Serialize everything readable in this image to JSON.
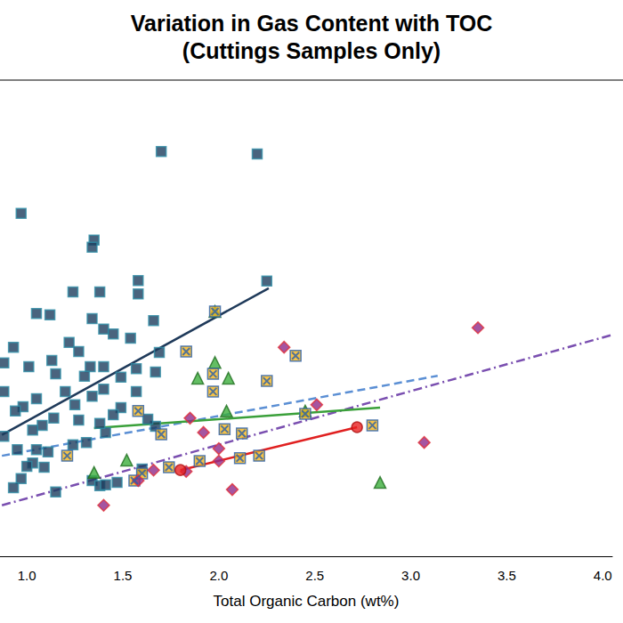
{
  "chart_data": {
    "type": "scatter",
    "title": "Variation in Gas Content with TOC",
    "subtitle": "(Cuttings Samples Only)",
    "x_label": "Total Organic Carbon (wt%)",
    "xlim": [
      0.86,
      4.05
    ],
    "xticks": [
      {
        "value": 1,
        "label": "1.0"
      },
      1.5,
      {
        "value": 2,
        "label": "2.0"
      },
      2.5,
      {
        "value": 3,
        "label": "3.0"
      },
      3.5,
      {
        "value": 4,
        "label": "4.0"
      }
    ],
    "ylim": [
      0,
      100
    ],
    "tick_labels": "x",
    "grid": false,
    "series": [
      {
        "type": "line",
        "color": "#1f3a5a",
        "line_style": "solid",
        "x": [
          0.87,
          2.26
        ],
        "values": [
          25.5,
          56.3
        ]
      },
      {
        "type": "line",
        "color": "#5b8fd4",
        "line_style": "dashed",
        "x": [
          0.87,
          3.14
        ],
        "values": [
          21.1,
          37.9
        ]
      },
      {
        "type": "line",
        "color": "#7a4fb0",
        "line_style": "dashdot",
        "x": [
          0.87,
          4.05
        ],
        "values": [
          10.7,
          46.5
        ]
      },
      {
        "type": "line",
        "color": "#3aa03a",
        "line_style": "solid",
        "x": [
          1.35,
          2.84
        ],
        "values": [
          26.9,
          31.2
        ]
      },
      {
        "type": "line",
        "color": "#e02020",
        "line_style": "solid",
        "x": [
          1.8,
          2.72
        ],
        "values": [
          18.1,
          27.1
        ]
      },
      {
        "type": "scatter",
        "color": "#1d3d5e",
        "marker": "square",
        "x": [
          1.7,
          2.2,
          0.97,
          1.35,
          1.34,
          2.25,
          1.58,
          1.24,
          1.38,
          1.05,
          1.12,
          1.58,
          1.34,
          1.66,
          1.4,
          0.93,
          1.22,
          1.45,
          1.27,
          1.54,
          1.13,
          1.01,
          1.4,
          1.33,
          0.88,
          1.69,
          1.15,
          1.57,
          1.67,
          0.88,
          1.3,
          1.49,
          1.05,
          1.4,
          1.2,
          1.34,
          1.57,
          0.98,
          0.94,
          1.49,
          1.14,
          1.27,
          1.45,
          1.08,
          1.03,
          1.41,
          0.88,
          1.67,
          1.38,
          1.31,
          0.95,
          1.11,
          1.03,
          1.09,
          1.0,
          0.97,
          0.93,
          1.15,
          1.34,
          1.38,
          1.41,
          1.47,
          1.6,
          1.05,
          1.24,
          1.63,
          1.25
        ],
        "values": [
          85.0,
          84.5,
          72.0,
          66.4,
          64.9,
          57.8,
          57.9,
          55.5,
          55.5,
          51.0,
          50.7,
          55.1,
          49.9,
          49.5,
          47.7,
          43.9,
          44.9,
          46.7,
          43.0,
          45.8,
          41.1,
          39.8,
          39.8,
          39.8,
          40.6,
          42.8,
          38.3,
          39.4,
          38.7,
          34.6,
          37.8,
          37.6,
          33.1,
          35.1,
          34.6,
          33.6,
          34.6,
          31.4,
          30.5,
          31.2,
          29.0,
          28.6,
          29.7,
          27.5,
          26.5,
          26.0,
          25.2,
          27.3,
          27.9,
          23.9,
          22.4,
          21.9,
          19.6,
          18.7,
          18.9,
          16.3,
          14.4,
          13.5,
          15.9,
          14.8,
          15.0,
          15.5,
          18.3,
          22.4,
          23.4,
          28.8,
          31.8
        ]
      },
      {
        "type": "scatter",
        "color": "#3cae3c",
        "marker": "triangle",
        "x": [
          1.98,
          1.98,
          1.89,
          2.05,
          2.04,
          2.45,
          1.52,
          1.35,
          2.84
        ],
        "values": [
          51.4,
          40.7,
          37.4,
          37.4,
          30.5,
          30.5,
          20.2,
          17.6,
          15.5
        ]
      },
      {
        "type": "scatter",
        "color": "#f4b41a",
        "marker": "square-x",
        "x": [
          1.98,
          1.83,
          2.4,
          1.97,
          1.97,
          2.25,
          1.58,
          2.45,
          1.7,
          2.03,
          2.12,
          1.21,
          2.8,
          1.9,
          2.21,
          2.11,
          1.74,
          1.56,
          1.6
        ],
        "values": [
          51.4,
          43.0,
          42.1,
          38.3,
          34.6,
          36.8,
          30.5,
          29.9,
          25.6,
          26.7,
          25.8,
          21.1,
          27.5,
          20.0,
          21.1,
          20.6,
          18.7,
          15.9,
          17.4
        ]
      },
      {
        "type": "scatter",
        "color": "#8e2a8a",
        "marker": "diamond",
        "x": [
          3.35,
          2.34,
          2.51,
          1.85,
          1.92,
          2.0,
          2.0,
          1.83,
          1.66,
          1.58,
          2.07,
          1.4,
          3.07
        ],
        "values": [
          48.0,
          43.9,
          31.8,
          29.0,
          26.0,
          22.6,
          20.0,
          17.8,
          18.1,
          15.9,
          14.0,
          10.7,
          23.9
        ]
      },
      {
        "type": "scatter",
        "color": "#e82020",
        "marker": "circle",
        "x": [
          1.8,
          2.72
        ],
        "values": [
          18.1,
          27.1
        ]
      }
    ]
  }
}
